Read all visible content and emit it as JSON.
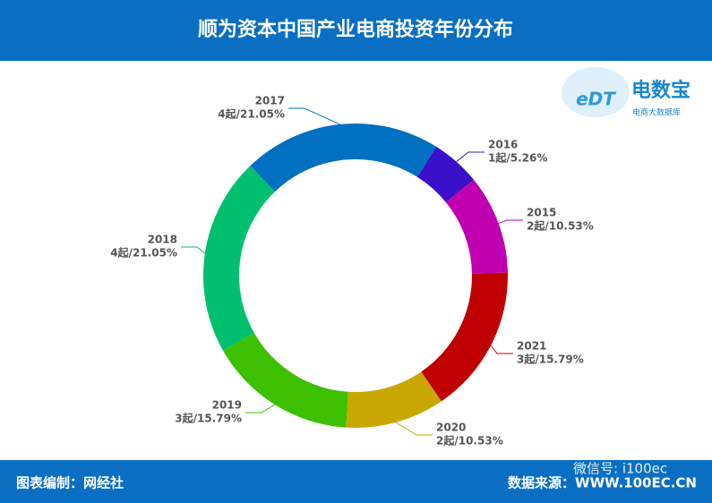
{
  "chart_data": {
    "type": "donut",
    "title": "顺为资本中国产业电商投资年份分布",
    "categories": [
      "2016",
      "2015",
      "2021",
      "2020",
      "2019",
      "2018",
      "2017"
    ],
    "values": [
      5.26,
      10.53,
      15.79,
      10.53,
      15.79,
      21.05,
      21.05
    ],
    "value_labels": [
      "1起/5.26%",
      "2起/10.53%",
      "3起/15.79%",
      "2起/10.53%",
      "3起/15.79%",
      "4起/21.05%",
      "4起/21.05%"
    ],
    "colors": [
      "#3a10c8",
      "#c000b0",
      "#c00000",
      "#c8a800",
      "#3cc000",
      "#00c070",
      "#0070c0"
    ]
  },
  "logo": {
    "name": "电数宝",
    "subtitle": "电商大数据库",
    "mark": "eDT"
  },
  "footer": {
    "left": "图表编制：网经社",
    "right": "数据来源：WWW.100EC.CN",
    "watermark": "微信号: i100ec"
  }
}
